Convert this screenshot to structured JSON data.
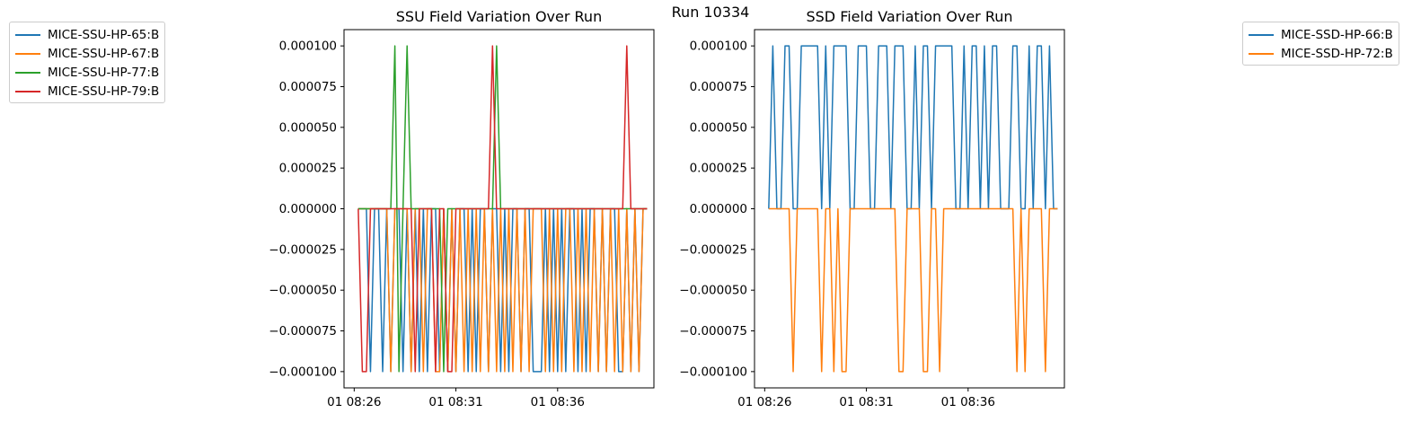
{
  "figure_title": "Run 10334",
  "chart_data": [
    {
      "type": "line",
      "title": "SSU Field Variation Over Run",
      "xlabel": "",
      "ylabel": "",
      "x_tick_labels": [
        "01 08:26",
        "01 08:31",
        "01 08:36"
      ],
      "x_tick_times": [
        "08:26",
        "08:31",
        "08:36"
      ],
      "xlim": [
        "08:25:30",
        "08:40:44"
      ],
      "y_tick_labels": [
        "0.000100",
        "0.000075",
        "0.000050",
        "0.000025",
        "0.000000",
        "−0.000025",
        "−0.000050",
        "−0.000075",
        "−0.000100"
      ],
      "ylim": [
        -0.00011,
        0.00011
      ],
      "grid": false,
      "legend_placement": "outside upper-left",
      "series": [
        {
          "name": "MICE-SSU-HP-65:B",
          "color": "#1f77b4",
          "x": [
            "08:26:12",
            "08:26:24",
            "08:26:36",
            "08:26:48",
            "08:27:00",
            "08:27:12",
            "08:27:24",
            "08:27:36",
            "08:27:48",
            "08:28:00",
            "08:28:12",
            "08:28:24",
            "08:28:36",
            "08:28:48",
            "08:29:00",
            "08:29:12",
            "08:29:24",
            "08:29:36",
            "08:29:48",
            "08:30:00",
            "08:30:12",
            "08:30:24",
            "08:30:36",
            "08:30:48",
            "08:31:00",
            "08:31:12",
            "08:31:24",
            "08:31:36",
            "08:31:48",
            "08:32:00",
            "08:32:12",
            "08:32:24",
            "08:32:36",
            "08:32:48",
            "08:33:00",
            "08:33:12",
            "08:33:24",
            "08:33:36",
            "08:33:48",
            "08:34:00",
            "08:34:12",
            "08:34:24",
            "08:34:36",
            "08:34:48",
            "08:35:00",
            "08:35:12",
            "08:35:24",
            "08:35:36",
            "08:35:48",
            "08:36:00",
            "08:36:12",
            "08:36:24",
            "08:36:36",
            "08:36:48",
            "08:37:00",
            "08:37:12",
            "08:37:24",
            "08:37:36",
            "08:37:48",
            "08:38:00",
            "08:38:12",
            "08:38:24",
            "08:38:36",
            "08:38:48",
            "08:39:00",
            "08:39:12",
            "08:39:24",
            "08:39:36",
            "08:39:48",
            "08:40:00",
            "08:40:12",
            "08:40:24"
          ],
          "values": [
            0,
            0,
            0,
            -0.0001,
            0,
            0,
            -0.0001,
            0,
            -0.0001,
            0,
            0,
            -0.0001,
            0,
            -0.0001,
            0,
            -0.0001,
            0,
            -0.0001,
            0,
            0,
            -0.0001,
            0,
            -0.0001,
            0,
            -0.0001,
            0,
            0,
            -0.0001,
            0,
            -0.0001,
            0,
            0,
            -0.0001,
            0,
            0,
            -0.0001,
            0,
            -0.0001,
            0,
            0,
            -0.0001,
            0,
            0,
            -0.0001,
            -0.0001,
            -0.0001,
            0,
            -0.0001,
            0,
            -0.0001,
            0,
            -0.0001,
            0,
            0,
            -0.0001,
            0,
            -0.0001,
            0,
            0,
            -0.0001,
            0,
            -0.0001,
            0,
            0,
            -0.0001,
            -0.0001,
            0,
            -0.0001,
            0,
            -0.0001,
            0,
            0
          ]
        },
        {
          "name": "MICE-SSU-HP-67:B",
          "color": "#ff7f0e",
          "x": [
            "08:26:12",
            "08:26:24",
            "08:26:36",
            "08:26:48",
            "08:27:00",
            "08:27:12",
            "08:27:24",
            "08:27:36",
            "08:27:48",
            "08:28:00",
            "08:28:12",
            "08:28:24",
            "08:28:36",
            "08:28:48",
            "08:29:00",
            "08:29:12",
            "08:29:24",
            "08:29:36",
            "08:29:48",
            "08:30:00",
            "08:30:12",
            "08:30:24",
            "08:30:36",
            "08:30:48",
            "08:31:00",
            "08:31:12",
            "08:31:24",
            "08:31:36",
            "08:31:48",
            "08:32:00",
            "08:32:12",
            "08:32:24",
            "08:32:36",
            "08:32:48",
            "08:33:00",
            "08:33:12",
            "08:33:24",
            "08:33:36",
            "08:33:48",
            "08:34:00",
            "08:34:12",
            "08:34:24",
            "08:34:36",
            "08:34:48",
            "08:35:00",
            "08:35:12",
            "08:35:24",
            "08:35:36",
            "08:35:48",
            "08:36:00",
            "08:36:12",
            "08:36:24",
            "08:36:36",
            "08:36:48",
            "08:37:00",
            "08:37:12",
            "08:37:24",
            "08:37:36",
            "08:37:48",
            "08:38:00",
            "08:38:12",
            "08:38:24",
            "08:38:36",
            "08:38:48",
            "08:39:00",
            "08:39:12",
            "08:39:24",
            "08:39:36",
            "08:39:48",
            "08:40:00",
            "08:40:12",
            "08:40:24"
          ],
          "values": [
            0,
            0,
            0,
            0,
            0,
            0,
            0,
            0,
            -0.0001,
            0,
            0,
            0,
            0,
            -0.0001,
            0,
            0,
            -0.0001,
            0,
            0,
            -0.0001,
            -0.0001,
            0,
            -0.0001,
            0,
            -0.0001,
            0,
            -0.0001,
            0,
            -0.0001,
            0,
            -0.0001,
            0,
            -0.0001,
            0,
            -0.0001,
            0,
            -0.0001,
            0,
            -0.0001,
            0,
            -0.0001,
            0,
            -0.0001,
            0,
            0,
            0,
            -0.0001,
            0,
            -0.0001,
            0,
            -0.0001,
            0,
            0,
            -0.0001,
            0,
            -0.0001,
            0,
            -0.0001,
            0,
            -0.0001,
            0,
            -0.0001,
            0,
            -0.0001,
            0,
            -0.0001,
            0,
            -0.0001,
            0,
            -0.0001,
            0,
            0
          ]
        },
        {
          "name": "MICE-SSU-HP-77:B",
          "color": "#2ca02c",
          "x": [
            "08:26:12",
            "08:26:24",
            "08:26:36",
            "08:26:48",
            "08:27:00",
            "08:27:12",
            "08:27:24",
            "08:27:36",
            "08:27:48",
            "08:28:00",
            "08:28:12",
            "08:28:24",
            "08:28:36",
            "08:28:48",
            "08:29:00",
            "08:29:12",
            "08:29:24",
            "08:29:36",
            "08:29:48",
            "08:30:00",
            "08:30:12",
            "08:30:24",
            "08:30:36",
            "08:30:48",
            "08:31:00",
            "08:31:12",
            "08:31:24",
            "08:31:36",
            "08:31:48",
            "08:32:00",
            "08:32:12",
            "08:32:24",
            "08:32:36",
            "08:32:48",
            "08:33:00",
            "08:33:12",
            "08:33:24",
            "08:33:36",
            "08:33:48",
            "08:34:00",
            "08:34:12",
            "08:34:24",
            "08:34:36",
            "08:34:48",
            "08:35:00",
            "08:35:12",
            "08:35:24",
            "08:35:36",
            "08:35:48",
            "08:36:00",
            "08:36:12",
            "08:36:24",
            "08:36:36",
            "08:36:48",
            "08:37:00",
            "08:37:12",
            "08:37:24",
            "08:37:36",
            "08:37:48",
            "08:38:00",
            "08:38:12",
            "08:38:24",
            "08:38:36",
            "08:38:48",
            "08:39:00",
            "08:39:12",
            "08:39:24",
            "08:39:36",
            "08:39:48",
            "08:40:00",
            "08:40:12",
            "08:40:24"
          ],
          "values": [
            0,
            0,
            0,
            0,
            0,
            0,
            0,
            0,
            0,
            0.0001,
            -0.0001,
            0,
            0.0001,
            0,
            0,
            0,
            0,
            0,
            0,
            0,
            0,
            -0.0001,
            0,
            0,
            0,
            0,
            0,
            0,
            0,
            0,
            0,
            0,
            0,
            0,
            0.0001,
            0,
            0,
            0,
            0,
            0,
            0,
            0,
            0,
            0,
            0,
            0,
            0,
            0,
            0,
            0,
            0,
            0,
            0,
            0,
            0,
            0,
            0,
            0,
            0,
            0,
            0,
            0,
            0,
            0,
            0,
            0,
            0,
            0,
            0,
            0,
            0,
            0
          ]
        },
        {
          "name": "MICE-SSU-HP-79:B",
          "color": "#d62728",
          "x": [
            "08:26:12",
            "08:26:24",
            "08:26:36",
            "08:26:48",
            "08:27:00",
            "08:27:12",
            "08:27:24",
            "08:27:36",
            "08:27:48",
            "08:28:00",
            "08:28:12",
            "08:28:24",
            "08:28:36",
            "08:28:48",
            "08:29:00",
            "08:29:12",
            "08:29:24",
            "08:29:36",
            "08:29:48",
            "08:30:00",
            "08:30:12",
            "08:30:24",
            "08:30:36",
            "08:30:48",
            "08:31:00",
            "08:31:12",
            "08:31:24",
            "08:31:36",
            "08:31:48",
            "08:32:00",
            "08:32:12",
            "08:32:24",
            "08:32:36",
            "08:32:48",
            "08:33:00",
            "08:33:12",
            "08:33:24",
            "08:33:36",
            "08:33:48",
            "08:34:00",
            "08:34:12",
            "08:34:24",
            "08:34:36",
            "08:34:48",
            "08:35:00",
            "08:35:12",
            "08:35:24",
            "08:35:36",
            "08:35:48",
            "08:36:00",
            "08:36:12",
            "08:36:24",
            "08:36:36",
            "08:36:48",
            "08:37:00",
            "08:37:12",
            "08:37:24",
            "08:37:36",
            "08:37:48",
            "08:38:00",
            "08:38:12",
            "08:38:24",
            "08:38:36",
            "08:38:48",
            "08:39:00",
            "08:39:12",
            "08:39:24",
            "08:39:36",
            "08:39:48",
            "08:40:00",
            "08:40:12",
            "08:40:24"
          ],
          "values": [
            0,
            -0.0001,
            -0.0001,
            0,
            0,
            0,
            0,
            0,
            0,
            0,
            0,
            0,
            0,
            0,
            -0.0001,
            0,
            0,
            0,
            0,
            -0.0001,
            0,
            0,
            -0.0001,
            -0.0001,
            0,
            0,
            0,
            0,
            0,
            0,
            0,
            0,
            0,
            0.0001,
            0,
            0,
            0,
            0,
            0,
            0,
            0,
            0,
            0,
            0,
            0,
            0,
            0,
            0,
            0,
            0,
            0,
            0,
            0,
            0,
            0,
            0,
            0,
            0,
            0,
            0,
            0,
            0,
            0,
            0,
            0,
            0,
            0.0001,
            0,
            0,
            0,
            0,
            0
          ]
        }
      ]
    },
    {
      "type": "line",
      "title": "SSD Field Variation Over Run",
      "xlabel": "",
      "ylabel": "",
      "x_tick_labels": [
        "01 08:26",
        "01 08:31",
        "01 08:36"
      ],
      "x_tick_times": [
        "08:26",
        "08:31",
        "08:36"
      ],
      "xlim": [
        "08:25:30",
        "08:40:44"
      ],
      "y_tick_labels": [
        "0.000100",
        "0.000075",
        "0.000050",
        "0.000025",
        "0.000000",
        "−0.000025",
        "−0.000050",
        "−0.000075",
        "−0.000100"
      ],
      "ylim": [
        -0.00011,
        0.00011
      ],
      "grid": false,
      "legend_placement": "outside upper-right",
      "series": [
        {
          "name": "MICE-SSD-HP-66:B",
          "color": "#1f77b4",
          "x": [
            "08:26:12",
            "08:26:24",
            "08:26:36",
            "08:26:48",
            "08:27:00",
            "08:27:12",
            "08:27:24",
            "08:27:36",
            "08:27:48",
            "08:28:00",
            "08:28:12",
            "08:28:24",
            "08:28:36",
            "08:28:48",
            "08:29:00",
            "08:29:12",
            "08:29:24",
            "08:29:36",
            "08:29:48",
            "08:30:00",
            "08:30:12",
            "08:30:24",
            "08:30:36",
            "08:30:48",
            "08:31:00",
            "08:31:12",
            "08:31:24",
            "08:31:36",
            "08:31:48",
            "08:32:00",
            "08:32:12",
            "08:32:24",
            "08:32:36",
            "08:32:48",
            "08:33:00",
            "08:33:12",
            "08:33:24",
            "08:33:36",
            "08:33:48",
            "08:34:00",
            "08:34:12",
            "08:34:24",
            "08:34:36",
            "08:34:48",
            "08:35:00",
            "08:35:12",
            "08:35:24",
            "08:35:36",
            "08:35:48",
            "08:36:00",
            "08:36:12",
            "08:36:24",
            "08:36:36",
            "08:36:48",
            "08:37:00",
            "08:37:12",
            "08:37:24",
            "08:37:36",
            "08:37:48",
            "08:38:00",
            "08:38:12",
            "08:38:24",
            "08:38:36",
            "08:38:48",
            "08:39:00",
            "08:39:12",
            "08:39:24",
            "08:39:36",
            "08:39:48",
            "08:40:00",
            "08:40:12",
            "08:40:24"
          ],
          "values": [
            0,
            0.0001,
            0,
            0,
            0.0001,
            0.0001,
            0,
            0,
            0.0001,
            0.0001,
            0.0001,
            0.0001,
            0.0001,
            0,
            0.0001,
            0,
            0.0001,
            0.0001,
            0.0001,
            0.0001,
            0,
            0,
            0.0001,
            0.0001,
            0.0001,
            0,
            0,
            0.0001,
            0.0001,
            0.0001,
            0,
            0.0001,
            0.0001,
            0.0001,
            0,
            0,
            0.0001,
            0,
            0.0001,
            0.0001,
            0,
            0.0001,
            0.0001,
            0.0001,
            0.0001,
            0.0001,
            0,
            0,
            0.0001,
            0,
            0.0001,
            0.0001,
            0,
            0.0001,
            0,
            0.0001,
            0.0001,
            0,
            0,
            0,
            0.0001,
            0.0001,
            0,
            0,
            0.0001,
            0,
            0.0001,
            0.0001,
            0,
            0.0001,
            0,
            0
          ]
        },
        {
          "name": "MICE-SSD-HP-72:B",
          "color": "#ff7f0e",
          "x": [
            "08:26:12",
            "08:26:24",
            "08:26:36",
            "08:26:48",
            "08:27:00",
            "08:27:12",
            "08:27:24",
            "08:27:36",
            "08:27:48",
            "08:28:00",
            "08:28:12",
            "08:28:24",
            "08:28:36",
            "08:28:48",
            "08:29:00",
            "08:29:12",
            "08:29:24",
            "08:29:36",
            "08:29:48",
            "08:30:00",
            "08:30:12",
            "08:30:24",
            "08:30:36",
            "08:30:48",
            "08:31:00",
            "08:31:12",
            "08:31:24",
            "08:31:36",
            "08:31:48",
            "08:32:00",
            "08:32:12",
            "08:32:24",
            "08:32:36",
            "08:32:48",
            "08:33:00",
            "08:33:12",
            "08:33:24",
            "08:33:36",
            "08:33:48",
            "08:34:00",
            "08:34:12",
            "08:34:24",
            "08:34:36",
            "08:34:48",
            "08:35:00",
            "08:35:12",
            "08:35:24",
            "08:35:36",
            "08:35:48",
            "08:36:00",
            "08:36:12",
            "08:36:24",
            "08:36:36",
            "08:36:48",
            "08:37:00",
            "08:37:12",
            "08:37:24",
            "08:37:36",
            "08:37:48",
            "08:38:00",
            "08:38:12",
            "08:38:24",
            "08:38:36",
            "08:38:48",
            "08:39:00",
            "08:39:12",
            "08:39:24",
            "08:39:36",
            "08:39:48",
            "08:40:00",
            "08:40:12",
            "08:40:24"
          ],
          "values": [
            0,
            0,
            0,
            0,
            0,
            0,
            -0.0001,
            0,
            0,
            0,
            0,
            0,
            0,
            -0.0001,
            0,
            0,
            -0.0001,
            0,
            -0.0001,
            -0.0001,
            0,
            0,
            0,
            0,
            0,
            0,
            0,
            0,
            0,
            0,
            0,
            0,
            -0.0001,
            -0.0001,
            0,
            0,
            0,
            0,
            -0.0001,
            -0.0001,
            0,
            0,
            -0.0001,
            0,
            0,
            0,
            0,
            0,
            0,
            0,
            0,
            0,
            0,
            0,
            0,
            0,
            0,
            0,
            0,
            0,
            0,
            -0.0001,
            0,
            -0.0001,
            0,
            0,
            0,
            0,
            -0.0001,
            0,
            0,
            0
          ]
        }
      ]
    }
  ]
}
